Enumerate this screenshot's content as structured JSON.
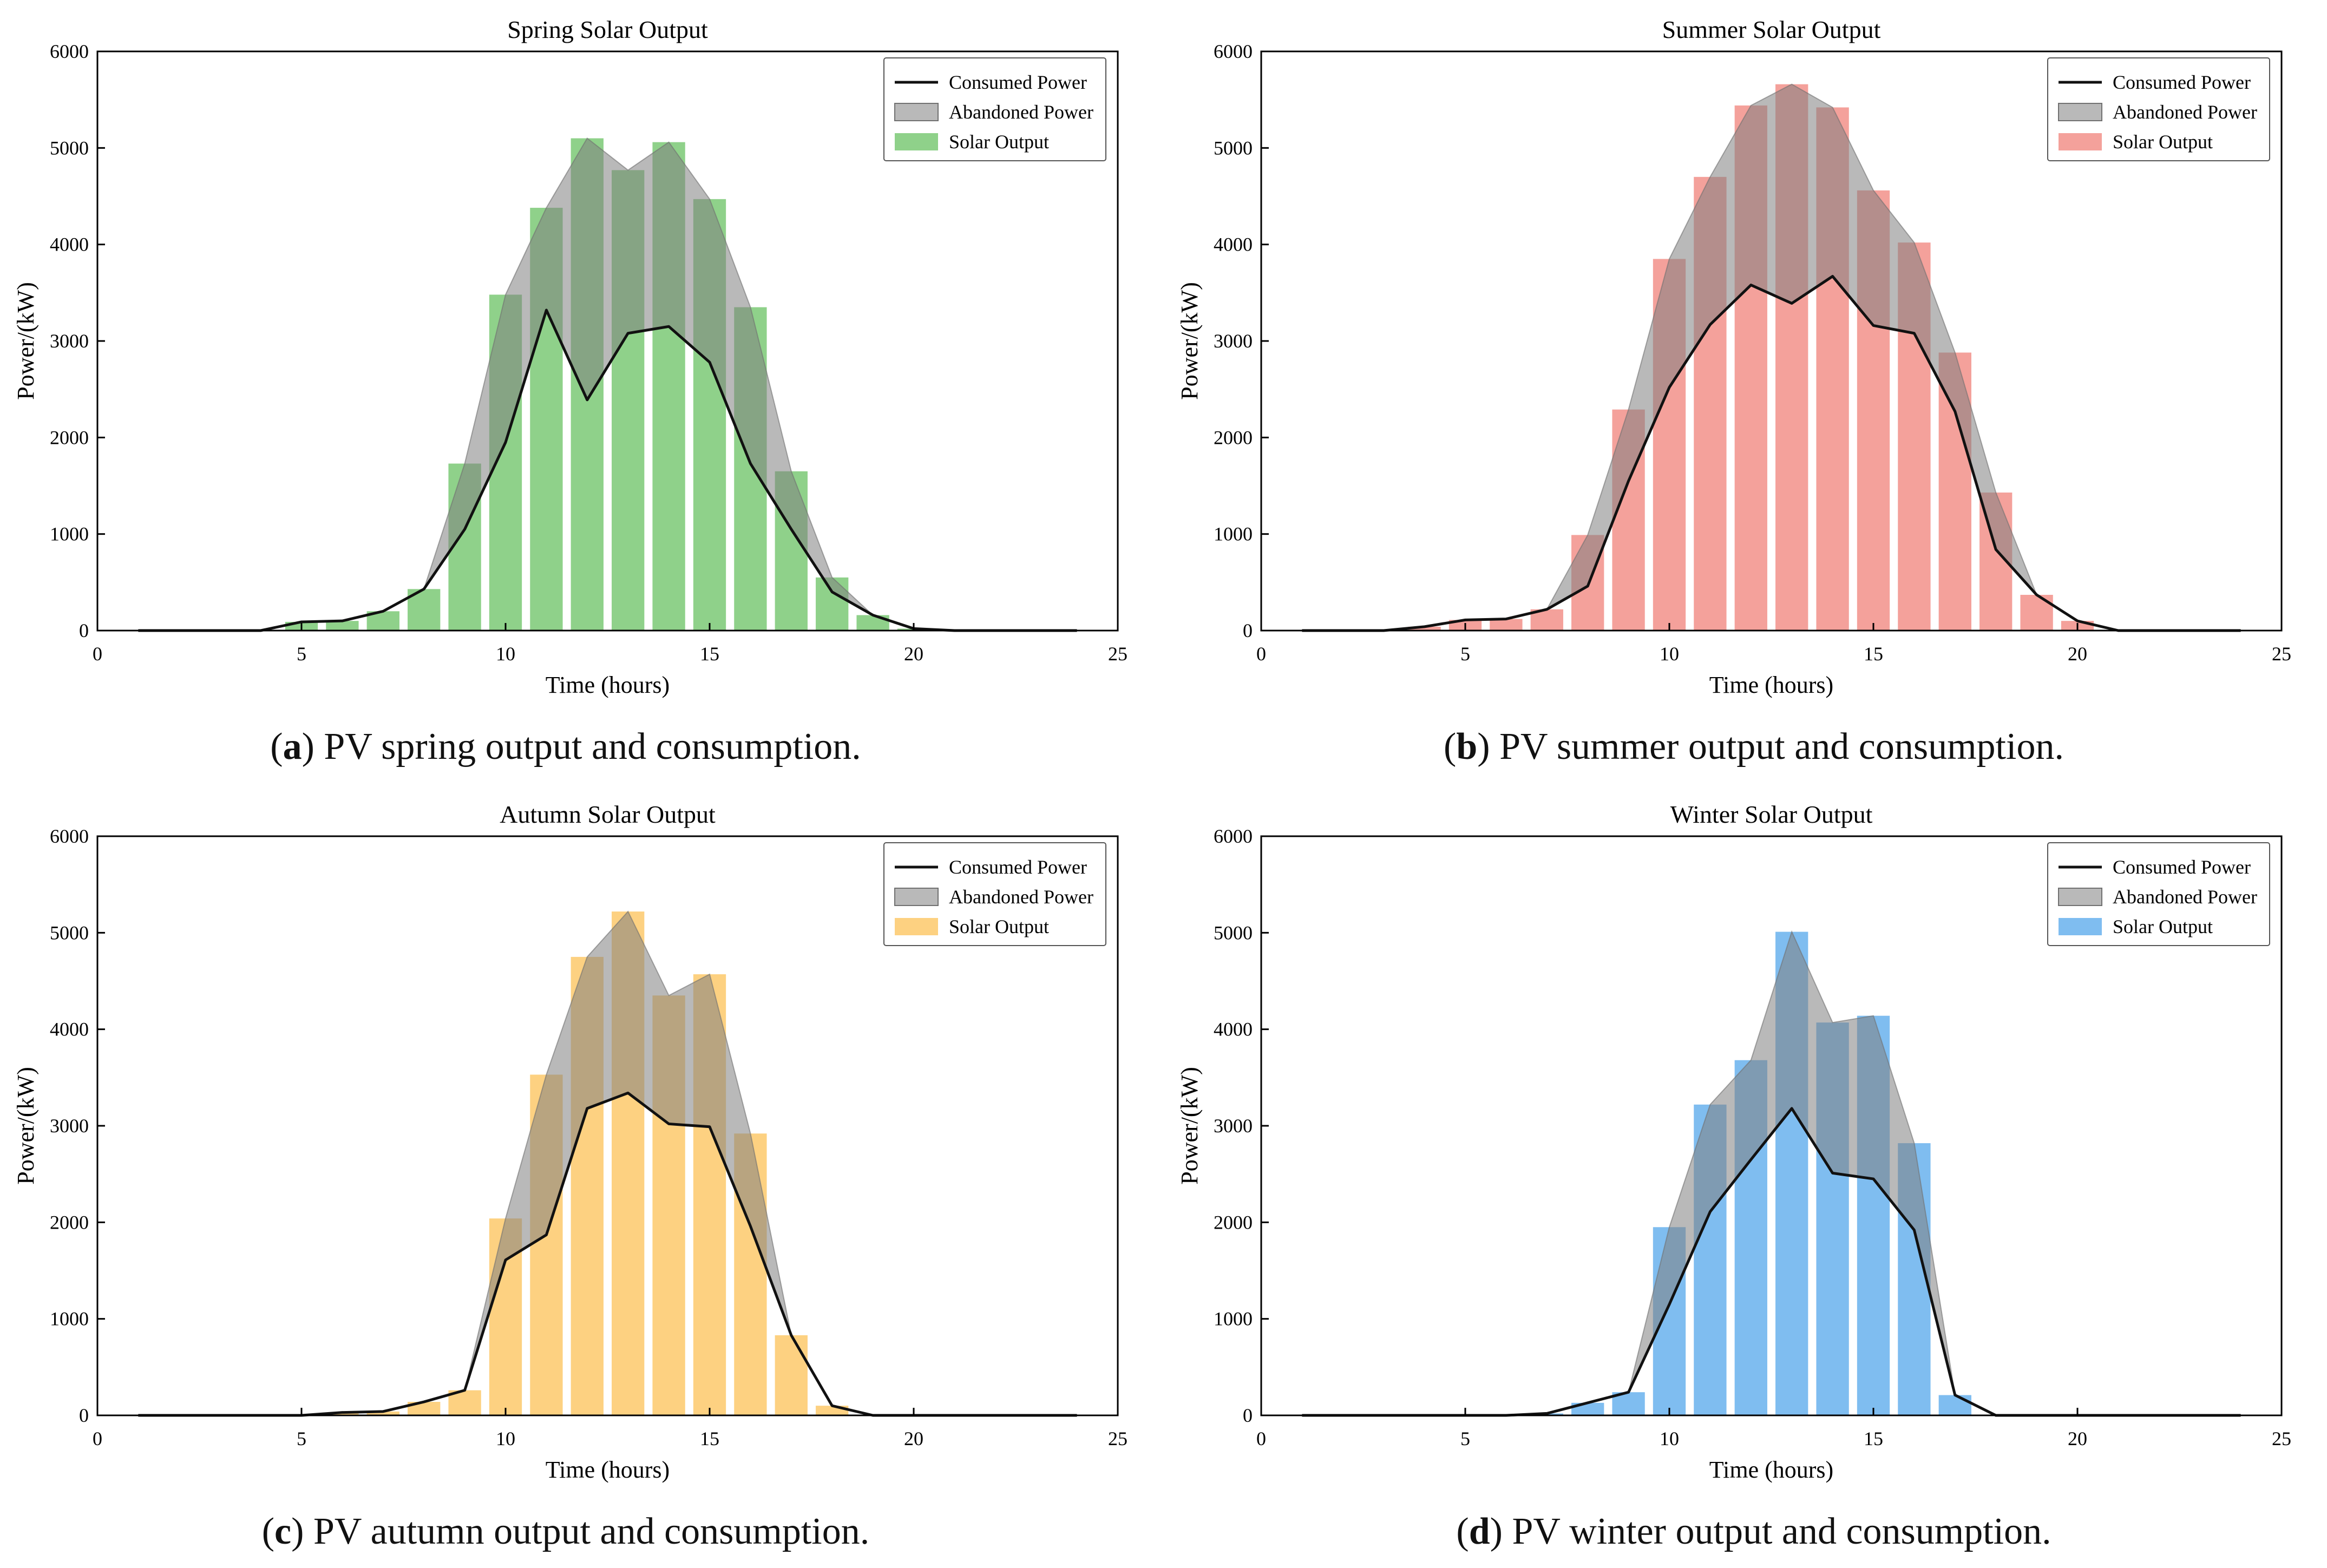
{
  "figure": {
    "captions": [
      {
        "letter": "a",
        "text": "PV spring output and consumption."
      },
      {
        "letter": "b",
        "text": "PV summer output and consumption."
      },
      {
        "letter": "c",
        "text": "PV autumn output and consumption."
      },
      {
        "letter": "d",
        "text": "PV winter output and consumption."
      }
    ]
  },
  "colors": {
    "consumed": "#111111",
    "abandoned": "#808080",
    "spring": "#8fd18a",
    "summer": "#f4a19b",
    "autumn": "#fdd181",
    "winter": "#7fbdf0"
  },
  "chart_data": [
    {
      "type": "bar",
      "title": "Spring Solar Output",
      "xlabel": "Time (hours)",
      "ylabel": "Power/(kW)",
      "xlim": [
        0,
        25
      ],
      "ylim": [
        0,
        6000
      ],
      "xticks": [
        0,
        5,
        10,
        15,
        20,
        25
      ],
      "yticks": [
        0,
        1000,
        2000,
        3000,
        4000,
        5000,
        6000
      ],
      "legend_position": "top-right",
      "legend": [
        "Consumed Power",
        "Abandoned Power",
        "Solar Output"
      ],
      "bar_color": "#8fd18a",
      "x": [
        1,
        2,
        3,
        4,
        5,
        6,
        7,
        8,
        9,
        10,
        11,
        12,
        13,
        14,
        15,
        16,
        17,
        18,
        19,
        20,
        21,
        22,
        23,
        24
      ],
      "series": [
        {
          "name": "Solar Output",
          "values": [
            0,
            0,
            0,
            0,
            90,
            100,
            200,
            430,
            1730,
            3480,
            4380,
            5100,
            4770,
            5060,
            4470,
            3350,
            1650,
            550,
            160,
            20,
            0,
            0,
            0,
            0
          ]
        },
        {
          "name": "Consumed Power",
          "values": [
            0,
            0,
            0,
            0,
            90,
            100,
            200,
            430,
            1050,
            1950,
            3320,
            2390,
            3080,
            3150,
            2780,
            1730,
            1050,
            400,
            160,
            20,
            0,
            0,
            0,
            0
          ]
        }
      ]
    },
    {
      "type": "bar",
      "title": "Summer Solar Output",
      "xlabel": "Time (hours)",
      "ylabel": "Power/(kW)",
      "xlim": [
        0,
        25
      ],
      "ylim": [
        0,
        6000
      ],
      "xticks": [
        0,
        5,
        10,
        15,
        20,
        25
      ],
      "yticks": [
        0,
        1000,
        2000,
        3000,
        4000,
        5000,
        6000
      ],
      "legend_position": "top-right",
      "legend": [
        "Consumed Power",
        "Abandoned Power",
        "Solar Output"
      ],
      "bar_color": "#f4a19b",
      "x": [
        1,
        2,
        3,
        4,
        5,
        6,
        7,
        8,
        9,
        10,
        11,
        12,
        13,
        14,
        15,
        16,
        17,
        18,
        19,
        20,
        21,
        22,
        23,
        24
      ],
      "series": [
        {
          "name": "Solar Output",
          "values": [
            0,
            0,
            0,
            40,
            110,
            120,
            220,
            990,
            2290,
            3850,
            4700,
            5440,
            5660,
            5420,
            4560,
            4020,
            2880,
            1430,
            370,
            100,
            0,
            0,
            0,
            0
          ]
        },
        {
          "name": "Consumed Power",
          "values": [
            0,
            0,
            0,
            40,
            110,
            120,
            220,
            460,
            1550,
            2520,
            3170,
            3580,
            3390,
            3670,
            3160,
            3080,
            2270,
            840,
            370,
            100,
            0,
            0,
            0,
            0
          ]
        }
      ]
    },
    {
      "type": "bar",
      "title": "Autumn Solar Output",
      "xlabel": "Time (hours)",
      "ylabel": "Power/(kW)",
      "xlim": [
        0,
        25
      ],
      "ylim": [
        0,
        6000
      ],
      "xticks": [
        0,
        5,
        10,
        15,
        20,
        25
      ],
      "yticks": [
        0,
        1000,
        2000,
        3000,
        4000,
        5000,
        6000
      ],
      "legend_position": "top-right",
      "legend": [
        "Consumed Power",
        "Abandoned Power",
        "Solar Output"
      ],
      "bar_color": "#fdd181",
      "x": [
        1,
        2,
        3,
        4,
        5,
        6,
        7,
        8,
        9,
        10,
        11,
        12,
        13,
        14,
        15,
        16,
        17,
        18,
        19,
        20,
        21,
        22,
        23,
        24
      ],
      "series": [
        {
          "name": "Solar Output",
          "values": [
            0,
            0,
            0,
            0,
            0,
            30,
            40,
            140,
            260,
            2040,
            3530,
            4750,
            5220,
            4350,
            4570,
            2920,
            830,
            100,
            0,
            0,
            0,
            0,
            0,
            0
          ]
        },
        {
          "name": "Consumed Power",
          "values": [
            0,
            0,
            0,
            0,
            0,
            30,
            40,
            140,
            260,
            1610,
            1870,
            3180,
            3340,
            3020,
            2990,
            1960,
            830,
            100,
            0,
            0,
            0,
            0,
            0,
            0
          ]
        }
      ]
    },
    {
      "type": "bar",
      "title": "Winter Solar Output",
      "xlabel": "Time (hours)",
      "ylabel": "Power/(kW)",
      "xlim": [
        0,
        25
      ],
      "ylim": [
        0,
        6000
      ],
      "xticks": [
        0,
        5,
        10,
        15,
        20,
        25
      ],
      "yticks": [
        0,
        1000,
        2000,
        3000,
        4000,
        5000,
        6000
      ],
      "legend_position": "top-right",
      "legend": [
        "Consumed Power",
        "Abandoned Power",
        "Solar Output"
      ],
      "bar_color": "#7fbdf0",
      "x": [
        1,
        2,
        3,
        4,
        5,
        6,
        7,
        8,
        9,
        10,
        11,
        12,
        13,
        14,
        15,
        16,
        17,
        18,
        19,
        20,
        21,
        22,
        23,
        24
      ],
      "series": [
        {
          "name": "Solar Output",
          "values": [
            0,
            0,
            0,
            0,
            0,
            0,
            20,
            130,
            240,
            1950,
            3220,
            3680,
            5010,
            4070,
            4140,
            2820,
            210,
            0,
            0,
            0,
            0,
            0,
            0,
            0
          ]
        },
        {
          "name": "Consumed Power",
          "values": [
            0,
            0,
            0,
            0,
            0,
            0,
            20,
            130,
            240,
            1150,
            2110,
            2650,
            3180,
            2510,
            2450,
            1920,
            210,
            0,
            0,
            0,
            0,
            0,
            0,
            0
          ]
        }
      ]
    }
  ]
}
